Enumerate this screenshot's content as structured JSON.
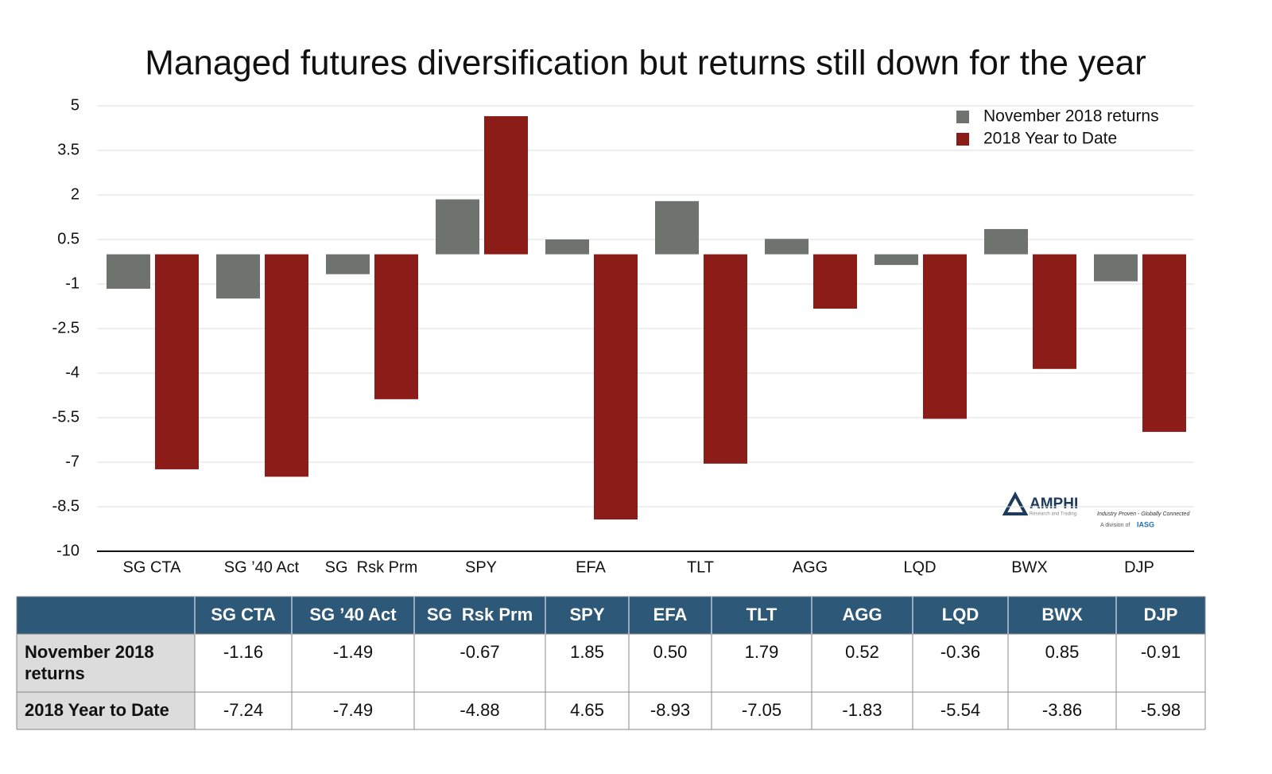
{
  "chart_data": {
    "type": "bar",
    "title": "Managed futures diversification but returns still down for the year",
    "categories": [
      "SG CTA",
      "SG ’40 Act",
      "SG  Rsk Prm",
      "SPY",
      "EFA",
      "TLT",
      "AGG",
      "LQD",
      "BWX",
      "DJP"
    ],
    "series": [
      {
        "name": "November 2018 returns",
        "color": "#6e7370",
        "values": [
          -1.16,
          -1.49,
          -0.67,
          1.85,
          0.5,
          1.79,
          0.52,
          -0.36,
          0.85,
          -0.91
        ],
        "value_labels": [
          "-1.16",
          "-1.49",
          "-0.67",
          "1.85",
          "0.50",
          "1.79",
          "0.52",
          "-0.36",
          "0.85",
          "-0.91"
        ]
      },
      {
        "name": "2018 Year to Date",
        "color": "#8b1c18",
        "values": [
          -7.24,
          -7.49,
          -4.88,
          4.65,
          -8.93,
          -7.05,
          -1.83,
          -5.54,
          -3.86,
          -5.98
        ],
        "value_labels": [
          "-7.24",
          "-7.49",
          "-4.88",
          "4.65",
          "-8.93",
          "-7.05",
          "-1.83",
          "-5.54",
          "-3.86",
          "-5.98"
        ]
      }
    ],
    "ylim": [
      -10,
      5
    ],
    "yticks": [
      5,
      3.5,
      2,
      0.5,
      -1,
      -2.5,
      -4,
      -5.5,
      -7,
      -8.5,
      -10
    ],
    "grid": true,
    "legend": "top-right"
  },
  "logo": {
    "name": "AMPHI",
    "subtitle": "Research and Trading",
    "tagline": "Industry Proven - Globally Connected",
    "division": "A division of",
    "parent": "IASG"
  }
}
